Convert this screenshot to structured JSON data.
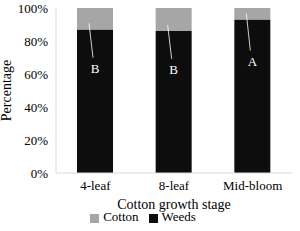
{
  "chart_data": {
    "type": "bar",
    "stacked": true,
    "categories": [
      "4-leaf",
      "8-leaf",
      "Mid-bloom"
    ],
    "series": [
      {
        "name": "Weeds",
        "color": "#0d0d0d",
        "values": [
          87,
          86,
          93
        ]
      },
      {
        "name": "Cotton",
        "color": "#a6a6a6",
        "values": [
          13,
          14,
          7
        ]
      }
    ],
    "annotations": [
      "B",
      "B",
      "A"
    ],
    "x_label": "Cotton growth stage",
    "y_label": "Percentage",
    "ylim": [
      0,
      100
    ],
    "yticks": [
      {
        "value": 0,
        "label": "0%"
      },
      {
        "value": 20,
        "label": "20%"
      },
      {
        "value": 40,
        "label": "40%"
      },
      {
        "value": 60,
        "label": "60%"
      },
      {
        "value": 80,
        "label": "80%"
      },
      {
        "value": 100,
        "label": "100%"
      }
    ],
    "legend": "bottom"
  }
}
